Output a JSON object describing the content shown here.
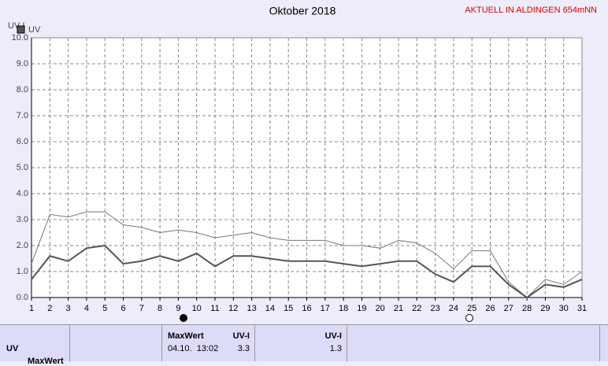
{
  "chart_data": {
    "type": "line",
    "title": "Oktober 2018",
    "subtitle": "AKTUELL IN ALDINGEN 654mNN",
    "y_label": "UV-I",
    "x": [
      1,
      2,
      3,
      4,
      5,
      6,
      7,
      8,
      9,
      10,
      11,
      12,
      13,
      14,
      15,
      16,
      17,
      18,
      19,
      20,
      21,
      22,
      23,
      24,
      25,
      26,
      27,
      28,
      29,
      30,
      31
    ],
    "xlim": [
      1,
      31
    ],
    "xticks": [
      1,
      2,
      3,
      4,
      5,
      6,
      7,
      8,
      9,
      10,
      11,
      12,
      13,
      14,
      15,
      16,
      17,
      18,
      19,
      20,
      21,
      22,
      23,
      24,
      25,
      26,
      27,
      28,
      29,
      30,
      31
    ],
    "ylim": [
      0,
      10
    ],
    "yticks": [
      {
        "value": 0,
        "label": "0.0"
      },
      {
        "value": 1,
        "label": "1.0"
      },
      {
        "value": 2,
        "label": "2.0"
      },
      {
        "value": 3,
        "label": "3.0"
      },
      {
        "value": 4,
        "label": "4.0"
      },
      {
        "value": 5,
        "label": "5.0"
      },
      {
        "value": 6,
        "label": "6.0"
      },
      {
        "value": 7,
        "label": "7.0"
      },
      {
        "value": 8,
        "label": "8.0"
      },
      {
        "value": 9,
        "label": "9.0"
      },
      {
        "value": 10,
        "label": "10.0"
      }
    ],
    "grid": true,
    "legend": "top-left",
    "series": [
      {
        "name": "UV",
        "color": "#555555",
        "values": [
          0.7,
          1.6,
          1.4,
          1.9,
          2.0,
          1.3,
          1.4,
          1.6,
          1.4,
          1.7,
          1.2,
          1.6,
          1.6,
          1.5,
          1.4,
          1.4,
          1.4,
          1.3,
          1.2,
          1.3,
          1.4,
          1.4,
          0.9,
          0.6,
          1.2,
          1.2,
          0.5,
          0,
          0.5,
          0.4,
          0.7
        ]
      },
      {
        "color": "#777777",
        "values": [
          1.3,
          3.2,
          3.1,
          3.3,
          3.3,
          2.8,
          2.7,
          2.5,
          2.6,
          2.5,
          2.3,
          2.4,
          2.5,
          2.3,
          2.2,
          2.2,
          2.2,
          2.0,
          2.0,
          1.9,
          2.2,
          2.1,
          1.7,
          1.1,
          1.8,
          1.8,
          0.6,
          0,
          0.7,
          0.5,
          1.0
        ]
      }
    ]
  },
  "table": {
    "row_label": "UV",
    "max_header": "MaxWert",
    "max_unit": "UV-I",
    "max_time": "04.10.  13:02",
    "max_value": "3.3",
    "avg_unit": "UV-I",
    "avg_value": "1.3",
    "next_row_label": "MaxWert"
  }
}
